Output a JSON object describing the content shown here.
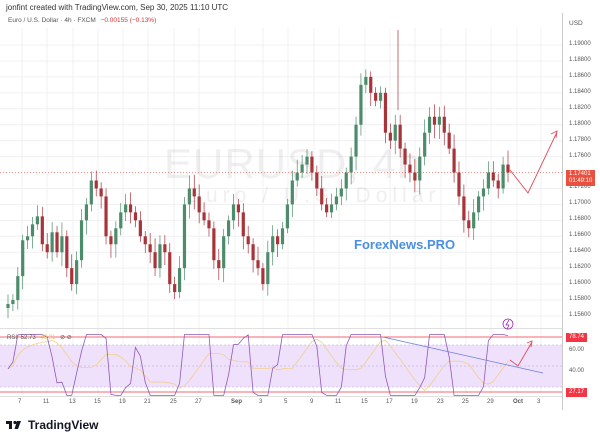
{
  "caption": "jonfint created with TradingView.com, Sep 30, 2025 11:10 UTC",
  "legend": {
    "symbol_desc": "Euro / U.S. Dollar · 4h · FXCM",
    "change": "−0.00155 (−0.13%)"
  },
  "watermark": {
    "symbol": "EURUSD, 4h",
    "name": "Euro / U.S. Dollar"
  },
  "brand_overlay": "ForexNews.PRO",
  "price_axis": {
    "currency": "USD",
    "ticks": [
      "1.19000",
      "1.18800",
      "1.18600",
      "1.18400",
      "1.18200",
      "1.18000",
      "1.17800",
      "1.17600",
      "1.17200",
      "1.17000",
      "1.16800",
      "1.16600",
      "1.16400",
      "1.16200",
      "1.16000",
      "1.15800",
      "1.15600"
    ],
    "current_price": "1.17401",
    "countdown": "01:49:10"
  },
  "rsi": {
    "label": "RSI",
    "value": "52.73",
    "ma_value": "49.91",
    "icons": "⊘ ⊘",
    "ticks": [
      "60.00",
      "40.00"
    ],
    "upper_tag": "78.74",
    "lower_tag": "27.17"
  },
  "time_axis": {
    "labels": [
      "7",
      "11",
      "13",
      "15",
      "19",
      "21",
      "25",
      "27",
      "Sep",
      "3",
      "5",
      "9",
      "11",
      "15",
      "17",
      "19",
      "23",
      "25",
      "29",
      "Oct",
      "3"
    ]
  },
  "footer": {
    "brand": "TradingView"
  },
  "colors": {
    "up": "#26a69a",
    "down": "#ef5350",
    "candle_up": "#4c8c6a",
    "candle_down": "#a8343a",
    "rsi_line": "#8e5ab8",
    "rsi_band": "#efe0fb",
    "projection": "#e04c5a",
    "trendline": "#6b7fd7",
    "brand": "#4a90e2"
  },
  "chart_data": {
    "type": "candlestick",
    "title": "Euro / U.S. Dollar · 4h · FXCM",
    "symbol": "EURUSD",
    "timeframe": "4h",
    "xlabel": "",
    "ylabel": "USD",
    "ylim": [
      1.1545,
      1.1925
    ],
    "x_ticks": [
      "7",
      "11",
      "13",
      "15",
      "19",
      "21",
      "25",
      "27",
      "Sep",
      "3",
      "5",
      "9",
      "11",
      "15",
      "17",
      "19",
      "23",
      "25",
      "29",
      "Oct",
      "3"
    ],
    "y_ticks": [
      1.156,
      1.158,
      1.16,
      1.162,
      1.164,
      1.166,
      1.168,
      1.17,
      1.172,
      1.176,
      1.178,
      1.18,
      1.182,
      1.184,
      1.186,
      1.188,
      1.19
    ],
    "last_price": 1.17401,
    "change": -0.00155,
    "change_pct": -0.13,
    "approx_closes": [
      1.1575,
      1.158,
      1.161,
      1.1655,
      1.166,
      1.1675,
      1.1685,
      1.165,
      1.164,
      1.1665,
      1.164,
      1.166,
      1.162,
      1.16,
      1.163,
      1.168,
      1.17,
      1.173,
      1.172,
      1.171,
      1.166,
      1.165,
      1.167,
      1.169,
      1.17,
      1.169,
      1.168,
      1.166,
      1.165,
      1.164,
      1.162,
      1.165,
      1.164,
      1.16,
      1.159,
      1.162,
      1.17,
      1.172,
      1.171,
      1.169,
      1.168,
      1.167,
      1.163,
      1.162,
      1.166,
      1.168,
      1.17,
      1.169,
      1.166,
      1.165,
      1.163,
      1.162,
      1.16,
      1.164,
      1.166,
      1.165,
      1.167,
      1.17,
      1.173,
      1.174,
      1.175,
      1.176,
      1.174,
      1.172,
      1.17,
      1.169,
      1.17,
      1.171,
      1.172,
      1.174,
      1.176,
      1.18,
      1.185,
      1.186,
      1.184,
      1.183,
      1.184,
      1.179,
      1.178,
      1.18,
      1.177,
      1.175,
      1.174,
      1.173,
      1.176,
      1.179,
      1.181,
      1.18,
      1.181,
      1.179,
      1.177,
      1.174,
      1.171,
      1.168,
      1.167,
      1.169,
      1.171,
      1.172,
      1.174,
      1.173,
      1.172,
      1.175,
      1.174
    ],
    "rsi": {
      "value": 52.73,
      "ma": 49.91,
      "bands": [
        70,
        30
      ],
      "extremes": [
        78.74,
        27.17
      ]
    },
    "annotations": [
      {
        "type": "projection",
        "desc": "red zig-zag from 1.1740 down to ~1.1715 then up to ~1.1790"
      },
      {
        "type": "rsi_trendline",
        "desc": "descending blue trendline from RSI peak ~Sep 17 to ~Oct 2"
      },
      {
        "type": "rsi_projection",
        "desc": "red arrow rising to ~65"
      }
    ]
  }
}
